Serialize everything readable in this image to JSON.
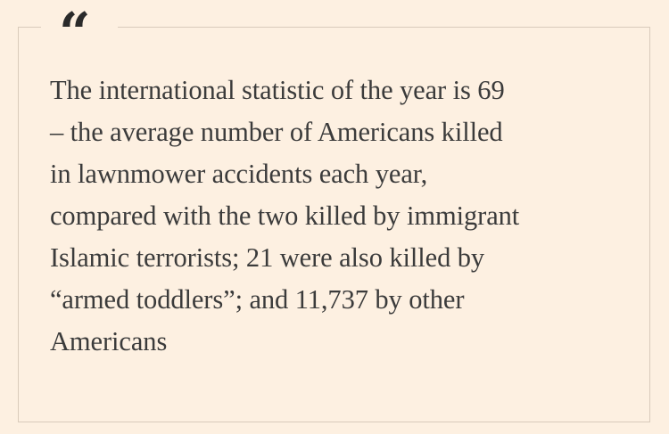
{
  "quote": {
    "mark": "“",
    "lines": [
      "The international statistic of the year is 69",
      "– the average number of Americans killed",
      "in lawnmower accidents each year,",
      "compared with the two killed by immigrant",
      "Islamic terrorists; 21 were also killed by",
      "“armed toddlers”; and 11,737 by other",
      "Americans"
    ]
  },
  "colors": {
    "background": "#fdf0e1",
    "border": "#d9cbbb",
    "text": "#3b3b3b",
    "quote_mark": "#2a2a2a"
  }
}
